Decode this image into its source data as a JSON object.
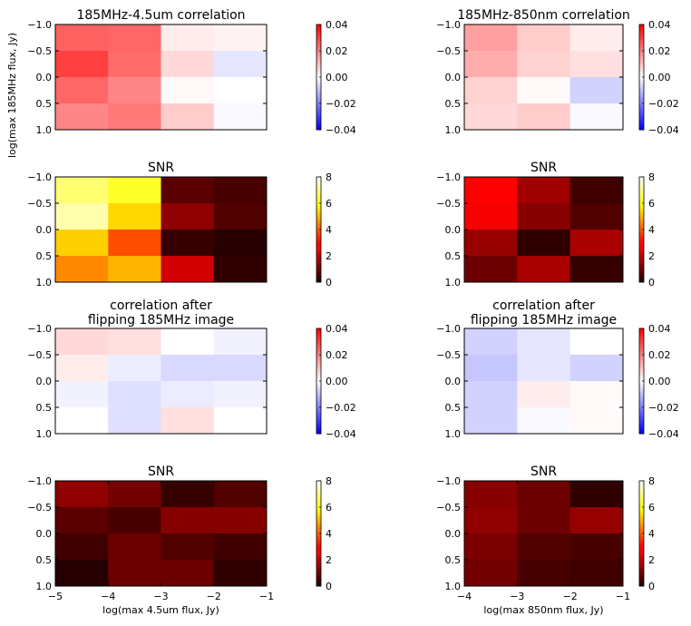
{
  "chart_data": [
    {
      "type": "heatmap",
      "id": "l0",
      "title": [
        "185MHz-4.5um correlation"
      ],
      "xlabel": "",
      "ylabel": "log(max 185MHz flux, Jy)",
      "x_ticks": [],
      "y_ticks": [
        "−1.0",
        "−0.5",
        "0.0",
        "0.5",
        "1.0"
      ],
      "colormap": "bwr",
      "clim": [
        -0.04,
        0.04
      ],
      "colorbar_ticks": [
        "0.04",
        "0.02",
        "0.00",
        "−0.02",
        "−0.04"
      ],
      "rows": 4,
      "cols": 4,
      "values": [
        [
          0.025,
          0.024,
          0.003,
          0.002
        ],
        [
          0.03,
          0.023,
          0.006,
          -0.004
        ],
        [
          0.024,
          0.019,
          0.001,
          0.0
        ],
        [
          0.019,
          0.021,
          0.008,
          -0.001
        ]
      ]
    },
    {
      "type": "heatmap",
      "id": "l1",
      "title": [
        "SNR"
      ],
      "xlabel": "",
      "ylabel": "",
      "x_ticks": [],
      "y_ticks": [
        "−1.0",
        "−0.5",
        "0.0",
        "0.5",
        "1.0"
      ],
      "colormap": "hot",
      "clim": [
        0,
        8
      ],
      "colorbar_ticks": [
        "8",
        "6",
        "4",
        "2",
        "0"
      ],
      "rows": 4,
      "cols": 4,
      "values": [
        [
          6.8,
          6.2,
          0.7,
          0.5
        ],
        [
          7.3,
          5.4,
          1.3,
          0.6
        ],
        [
          5.3,
          3.8,
          0.3,
          0.1
        ],
        [
          4.5,
          5.0,
          2.1,
          0.2
        ]
      ]
    },
    {
      "type": "heatmap",
      "id": "l2",
      "title": [
        "correlation after",
        "flipping 185MHz image"
      ],
      "xlabel": "",
      "ylabel": "",
      "x_ticks": [],
      "y_ticks": [
        "−1.0",
        "−0.5",
        "0.0",
        "0.5",
        "1.0"
      ],
      "colormap": "bwr",
      "clim": [
        -0.04,
        0.04
      ],
      "colorbar_ticks": [
        "0.04",
        "0.02",
        "0.00",
        "−0.02",
        "−0.04"
      ],
      "rows": 4,
      "cols": 4,
      "values": [
        [
          0.006,
          0.005,
          0.0,
          -0.002
        ],
        [
          0.003,
          -0.003,
          -0.006,
          -0.006
        ],
        [
          -0.002,
          -0.005,
          -0.003,
          -0.002
        ],
        [
          0.0,
          -0.005,
          0.005,
          0.0
        ]
      ]
    },
    {
      "type": "heatmap",
      "id": "l3",
      "title": [
        "SNR"
      ],
      "xlabel": "log(max 4.5um flux, Jy)",
      "ylabel": "",
      "x_ticks": [
        "−5",
        "−4",
        "−3",
        "−2",
        "−1"
      ],
      "y_ticks": [
        "−1.0",
        "−0.5",
        "0.0",
        "0.5",
        "1.0"
      ],
      "colormap": "hot",
      "clim": [
        0,
        8
      ],
      "colorbar_ticks": [
        "8",
        "6",
        "4",
        "2",
        "0"
      ],
      "rows": 4,
      "cols": 4,
      "values": [
        [
          1.3,
          1.0,
          0.3,
          0.6
        ],
        [
          0.7,
          0.5,
          1.2,
          1.2
        ],
        [
          0.4,
          0.9,
          0.6,
          0.4
        ],
        [
          0.1,
          0.9,
          0.9,
          0.2
        ]
      ]
    },
    {
      "type": "heatmap",
      "id": "r0",
      "title": [
        "185MHz-850nm correlation"
      ],
      "xlabel": "",
      "ylabel": "",
      "x_ticks": [],
      "y_ticks": [
        "−1.0",
        "−0.5",
        "0.0",
        "0.5",
        "1.0"
      ],
      "colormap": "bwr",
      "clim": [
        -0.04,
        0.04
      ],
      "colorbar_ticks": [
        "0.04",
        "0.02",
        "0.00",
        "−0.02",
        "−0.04"
      ],
      "rows": 4,
      "cols": 3,
      "values": [
        [
          0.015,
          0.008,
          0.003
        ],
        [
          0.013,
          0.007,
          0.005
        ],
        [
          0.007,
          0.001,
          -0.007
        ],
        [
          0.006,
          0.008,
          -0.001
        ]
      ]
    },
    {
      "type": "heatmap",
      "id": "r1",
      "title": [
        "SNR"
      ],
      "xlabel": "",
      "ylabel": "",
      "x_ticks": [],
      "y_ticks": [
        "−1.0",
        "−0.5",
        "0.0",
        "0.5",
        "1.0"
      ],
      "colormap": "hot",
      "clim": [
        0,
        8
      ],
      "colorbar_ticks": [
        "8",
        "6",
        "4",
        "2",
        "0"
      ],
      "rows": 4,
      "cols": 3,
      "values": [
        [
          2.9,
          1.5,
          0.4
        ],
        [
          2.5,
          1.2,
          0.6
        ],
        [
          1.4,
          0.2,
          1.6
        ],
        [
          0.9,
          1.6,
          0.3
        ]
      ]
    },
    {
      "type": "heatmap",
      "id": "r2",
      "title": [
        "correlation after",
        "flipping 185MHz image"
      ],
      "xlabel": "",
      "ylabel": "",
      "x_ticks": [],
      "y_ticks": [
        "−1.0",
        "−0.5",
        "0.0",
        "0.5",
        "1.0"
      ],
      "colormap": "bwr",
      "clim": [
        -0.04,
        0.04
      ],
      "colorbar_ticks": [
        "0.04",
        "0.02",
        "0.00",
        "−0.02",
        "−0.04"
      ],
      "rows": 4,
      "cols": 3,
      "values": [
        [
          -0.007,
          -0.004,
          0.0
        ],
        [
          -0.009,
          -0.004,
          -0.007
        ],
        [
          -0.007,
          0.003,
          0.001
        ],
        [
          -0.007,
          -0.001,
          0.001
        ]
      ]
    },
    {
      "type": "heatmap",
      "id": "r3",
      "title": [
        "SNR"
      ],
      "xlabel": "log(max 850nm flux, Jy)",
      "ylabel": "",
      "x_ticks": [
        "−4",
        "−3",
        "−2",
        "−1"
      ],
      "y_ticks": [
        "−1.0",
        "−0.5",
        "0.0",
        "0.5",
        "1.0"
      ],
      "colormap": "hot",
      "clim": [
        0,
        8
      ],
      "colorbar_ticks": [
        "8",
        "6",
        "4",
        "2",
        "0"
      ],
      "rows": 4,
      "cols": 3,
      "values": [
        [
          1.2,
          0.9,
          0.2
        ],
        [
          1.3,
          0.9,
          1.4
        ],
        [
          1.1,
          0.6,
          0.5
        ],
        [
          1.0,
          0.5,
          0.4
        ]
      ]
    }
  ]
}
